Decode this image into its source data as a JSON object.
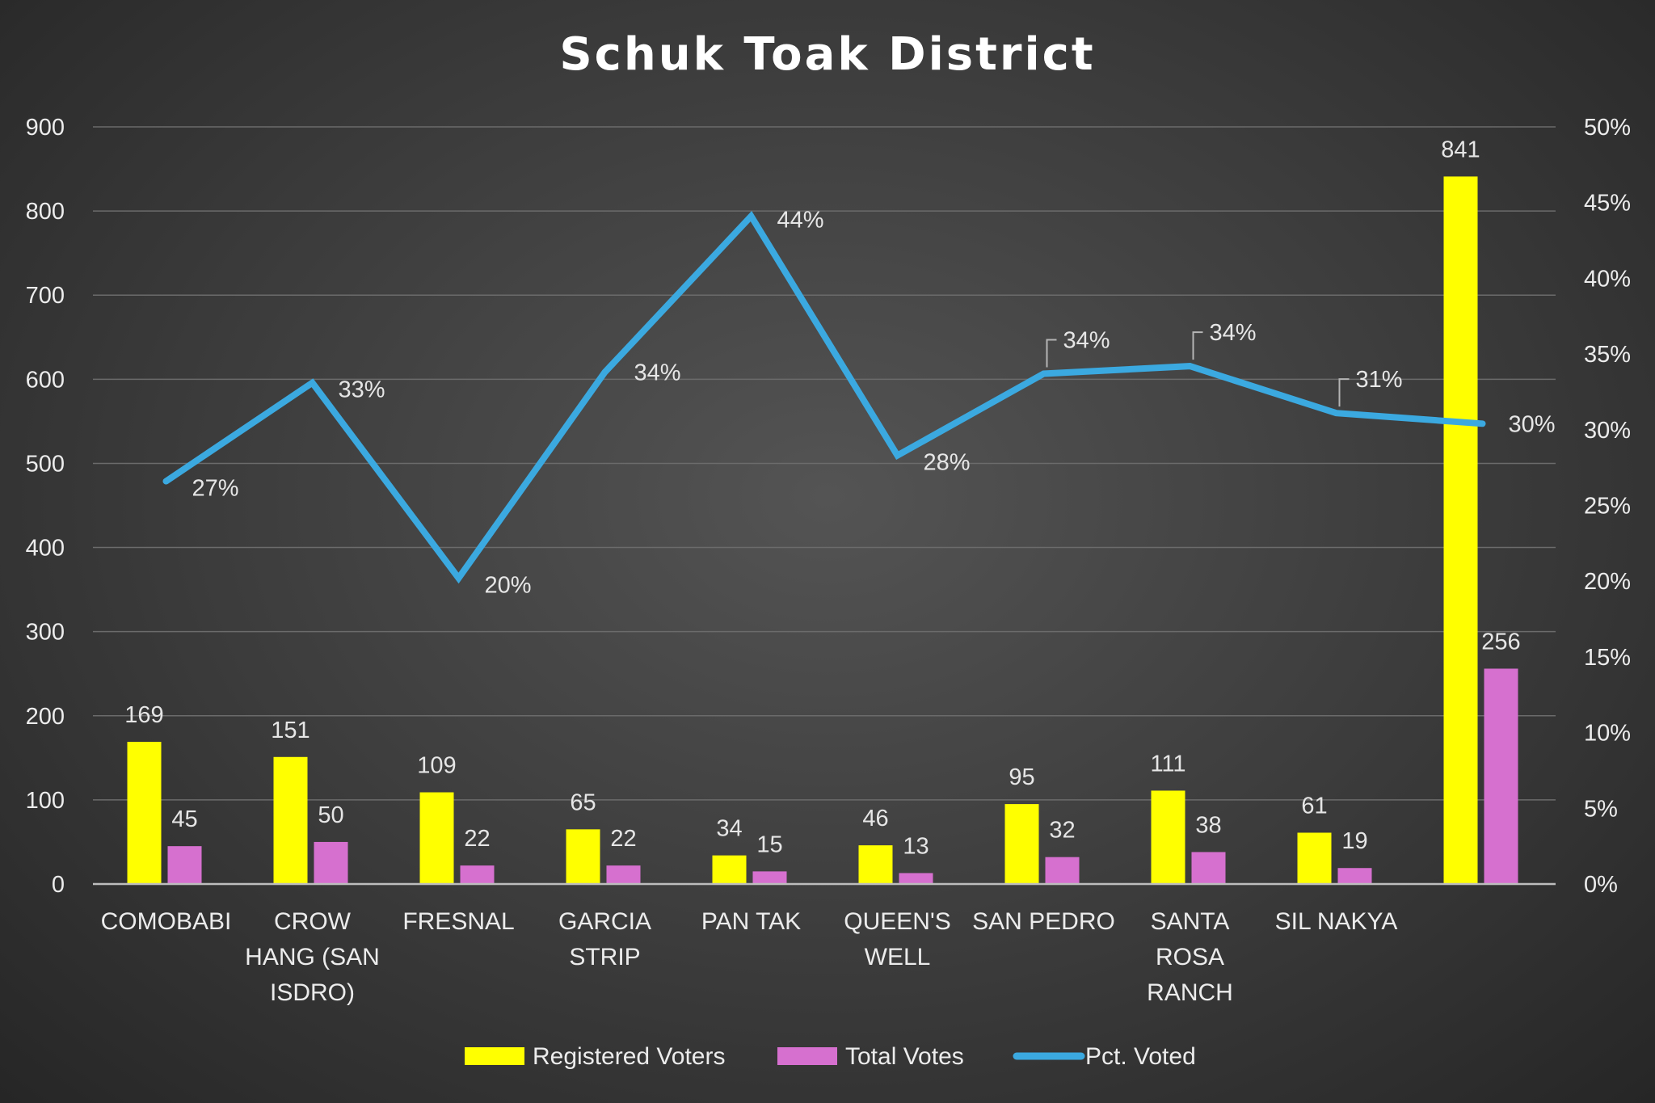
{
  "chart_data": {
    "type": "bar",
    "title": "Schuk Toak District",
    "categories": [
      [
        "COMOBABI"
      ],
      [
        "CROW",
        "HANG (SAN",
        "ISDRO)"
      ],
      [
        "FRESNAL"
      ],
      [
        "GARCIA",
        "STRIP"
      ],
      [
        "PAN TAK"
      ],
      [
        "QUEEN'S",
        "WELL"
      ],
      [
        "SAN PEDRO"
      ],
      [
        "SANTA",
        "ROSA",
        "RANCH"
      ],
      [
        "SIL NAKYA"
      ],
      [
        ""
      ]
    ],
    "series": [
      {
        "name": "Registered Voters",
        "type": "bar",
        "axis": "left",
        "color": "#ffff00",
        "values": [
          169,
          151,
          109,
          65,
          34,
          46,
          95,
          111,
          61,
          841
        ],
        "labels": [
          "169",
          "151",
          "109",
          "65",
          "34",
          "46",
          "95",
          "111",
          "61",
          "841"
        ]
      },
      {
        "name": "Total Votes",
        "type": "bar",
        "axis": "left",
        "color": "#d670cf",
        "values": [
          45,
          50,
          22,
          22,
          15,
          13,
          32,
          38,
          19,
          256
        ],
        "labels": [
          "45",
          "50",
          "22",
          "22",
          "15",
          "13",
          "32",
          "38",
          "19",
          "256"
        ]
      },
      {
        "name": "Pct. Voted",
        "type": "line",
        "axis": "right",
        "color": "#3ba9e0",
        "values": [
          26.6,
          33.1,
          20.2,
          33.8,
          44.1,
          28.3,
          33.7,
          34.2,
          31.1,
          30.4
        ],
        "labels": [
          "27%",
          "33%",
          "20%",
          "34%",
          "44%",
          "28%",
          "34%",
          "34%",
          "31%",
          "30%"
        ]
      }
    ],
    "y_left": {
      "min": 0,
      "max": 900,
      "ticks": [
        "0",
        "100",
        "200",
        "300",
        "400",
        "500",
        "600",
        "700",
        "800",
        "900"
      ]
    },
    "y_right": {
      "min": 0,
      "max": 50,
      "ticks": [
        "0%",
        "5%",
        "10%",
        "15%",
        "20%",
        "25%",
        "30%",
        "35%",
        "40%",
        "45%",
        "50%"
      ]
    },
    "grid": true,
    "legend_position": "bottom"
  }
}
